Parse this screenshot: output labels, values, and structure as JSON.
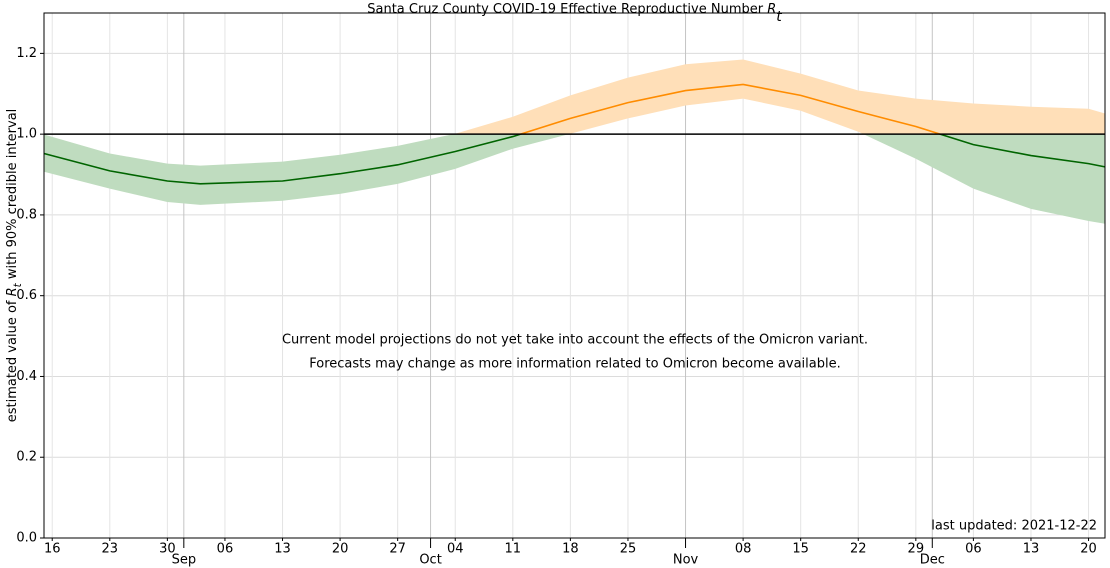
{
  "chart_data": {
    "type": "line",
    "title": [
      {
        "text": "Santa Cruz County COVID-19 Effective Reproductive Number "
      },
      {
        "text": "R",
        "style": "italic"
      },
      {
        "text": "t",
        "style": "sub"
      }
    ],
    "ylabel": [
      {
        "text": "estimated value of "
      },
      {
        "text": "R",
        "style": "italic"
      },
      {
        "text": "t",
        "style": "sub"
      },
      {
        "text": " with 90% credible interval"
      }
    ],
    "annotation": [
      "Current model projections do not yet take into account the effects of the Omicron variant.",
      "Forecasts may change as more information related to Omicron become available."
    ],
    "annotation_color": "#d62728",
    "footnote": "last updated: 2021-12-22",
    "x": [
      "08-15",
      "08-23",
      "08-30",
      "09-03",
      "09-13",
      "09-20",
      "09-27",
      "10-04",
      "10-11",
      "10-18",
      "10-25",
      "11-01",
      "11-08",
      "11-15",
      "11-22",
      "11-29",
      "12-06",
      "12-13",
      "12-20",
      "12-22"
    ],
    "series": [
      {
        "values": [
          0.952,
          0.909,
          0.884,
          0.877,
          0.884,
          0.902,
          0.924,
          0.957,
          0.994,
          1.039,
          1.078,
          1.108,
          1.123,
          1.096,
          1.056,
          1.019,
          0.974,
          0.947,
          0.927,
          0.919
        ],
        "lower": [
          0.907,
          0.865,
          0.832,
          0.825,
          0.835,
          0.852,
          0.877,
          0.914,
          0.964,
          1.001,
          1.039,
          1.071,
          1.088,
          1.058,
          1.006,
          0.939,
          0.865,
          0.815,
          0.785,
          0.778
        ],
        "upper": [
          0.999,
          0.952,
          0.927,
          0.922,
          0.932,
          0.949,
          0.971,
          1.001,
          1.043,
          1.096,
          1.14,
          1.173,
          1.185,
          1.15,
          1.108,
          1.088,
          1.076,
          1.068,
          1.063,
          1.051
        ],
        "color_below": "#006400",
        "color_above": "#ff8c00",
        "band_color_below": "#bfdcbf",
        "band_color_above": "#ffdfb8"
      }
    ],
    "threshold": 1,
    "xlim": [
      "08-15",
      "12-22"
    ],
    "xticks": [
      {
        "value": "08-16",
        "label": "16"
      },
      {
        "value": "08-23",
        "label": "23"
      },
      {
        "value": "08-30",
        "label": "30"
      },
      {
        "value": "09-06",
        "label": "06"
      },
      {
        "value": "09-13",
        "label": "13"
      },
      {
        "value": "09-20",
        "label": "20"
      },
      {
        "value": "09-27",
        "label": "27"
      },
      {
        "value": "10-04",
        "label": "04"
      },
      {
        "value": "10-11",
        "label": "11"
      },
      {
        "value": "10-18",
        "label": "18"
      },
      {
        "value": "10-25",
        "label": "25"
      },
      {
        "value": "11-08",
        "label": "08"
      },
      {
        "value": "11-15",
        "label": "15"
      },
      {
        "value": "11-22",
        "label": "22"
      },
      {
        "value": "11-29",
        "label": "29"
      },
      {
        "value": "12-06",
        "label": "06"
      },
      {
        "value": "12-13",
        "label": "13"
      },
      {
        "value": "12-20",
        "label": "20"
      }
    ],
    "xticks_major": [
      {
        "value": "09-01",
        "label": "Sep"
      },
      {
        "value": "10-01",
        "label": "Oct"
      },
      {
        "value": "11-01",
        "label": "Nov"
      },
      {
        "value": "12-01",
        "label": "Dec"
      }
    ],
    "ylim": [
      0,
      1.3
    ],
    "yticks": [
      {
        "value": 0,
        "label": "0.0"
      },
      {
        "value": 0.2,
        "label": "0.2"
      },
      {
        "value": 0.4,
        "label": "0.4"
      },
      {
        "value": 0.6,
        "label": "0.6"
      },
      {
        "value": 0.8,
        "label": "0.8"
      },
      {
        "value": 1,
        "label": "1.0"
      },
      {
        "value": 1.2,
        "label": "1.2"
      }
    ],
    "grid": true
  }
}
